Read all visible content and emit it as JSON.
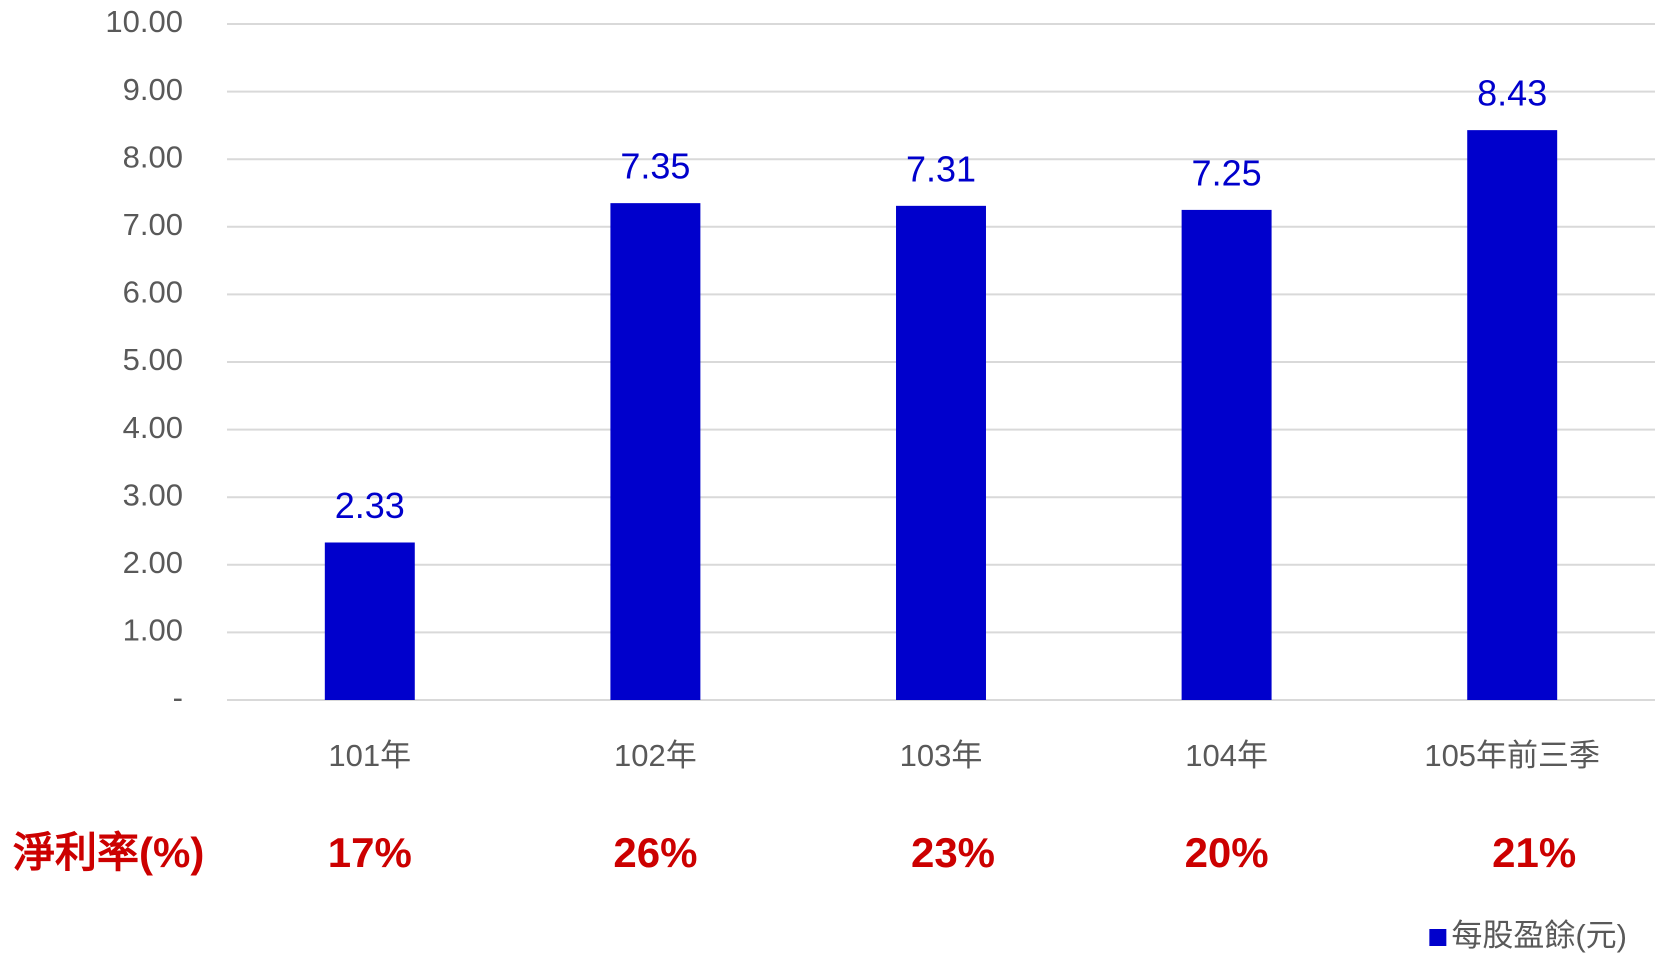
{
  "chart_data": {
    "type": "bar",
    "categories": [
      "101年",
      "102年",
      "103年",
      "104年",
      "105年前三季"
    ],
    "series": [
      {
        "name": "每股盈餘(元)",
        "color": "#0000cc",
        "values": [
          2.33,
          7.35,
          7.31,
          7.25,
          8.43
        ]
      }
    ],
    "ylim": [
      0,
      10
    ],
    "yticks": [
      {
        "value": 0,
        "label": "-"
      },
      {
        "value": 1,
        "label": "1.00"
      },
      {
        "value": 2,
        "label": "2.00"
      },
      {
        "value": 3,
        "label": "3.00"
      },
      {
        "value": 4,
        "label": "4.00"
      },
      {
        "value": 5,
        "label": "5.00"
      },
      {
        "value": 6,
        "label": "6.00"
      },
      {
        "value": 7,
        "label": "7.00"
      },
      {
        "value": 8,
        "label": "8.00"
      },
      {
        "value": 9,
        "label": "9.00"
      },
      {
        "value": 10,
        "label": "10.00"
      }
    ],
    "grid": true,
    "legend": "bottom-right",
    "net_margin": {
      "label": "淨利率(%)",
      "color": "#cc0000",
      "values": [
        17,
        26,
        23,
        20,
        21
      ],
      "value_labels": [
        "17%",
        "26%",
        "23%",
        "20%",
        "21%"
      ]
    }
  }
}
